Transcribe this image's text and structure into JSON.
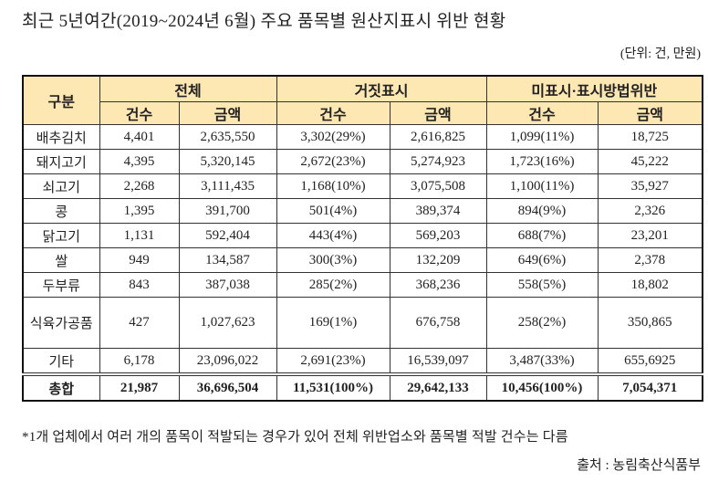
{
  "title": "최근 5년여간(2019~2024년 6월) 주요 품목별 원산지표시 위반 현황",
  "unit": "(단위: 건, 만원)",
  "header": {
    "category": "구분",
    "groups": [
      "전체",
      "거짓표시",
      "미표시·표시방법위반"
    ],
    "sub": [
      "건수",
      "금액",
      "건수",
      "금액",
      "건수",
      "금액"
    ]
  },
  "rows": [
    {
      "name": "배추김치",
      "cells": [
        "4,401",
        "2,635,550",
        "3,302(29%)",
        "2,616,825",
        "1,099(11%)",
        "18,725"
      ]
    },
    {
      "name": "돼지고기",
      "cells": [
        "4,395",
        "5,320,145",
        "2,672(23%)",
        "5,274,923",
        "1,723(16%)",
        "45,222"
      ]
    },
    {
      "name": "쇠고기",
      "cells": [
        "2,268",
        "3,111,435",
        "1,168(10%)",
        "3,075,508",
        "1,100(11%)",
        "35,927"
      ]
    },
    {
      "name": "콩",
      "cells": [
        "1,395",
        "391,700",
        "501(4%)",
        "389,374",
        "894(9%)",
        "2,326"
      ]
    },
    {
      "name": "닭고기",
      "cells": [
        "1,131",
        "592,404",
        "443(4%)",
        "569,203",
        "688(7%)",
        "23,201"
      ]
    },
    {
      "name": "쌀",
      "cells": [
        "949",
        "134,587",
        "300(3%)",
        "132,209",
        "649(6%)",
        "2,378"
      ]
    },
    {
      "name": "두부류",
      "cells": [
        "843",
        "387,038",
        "285(2%)",
        "368,236",
        "558(5%)",
        "18,802"
      ]
    },
    {
      "name": "식육가공품",
      "cells": [
        "427",
        "1,027,623",
        "169(1%)",
        "676,758",
        "258(2%)",
        "350,865"
      ]
    },
    {
      "name": "기타",
      "cells": [
        "6,178",
        "23,096,022",
        "2,691(23%)",
        "16,539,097",
        "3,487(33%)",
        "655,6925"
      ]
    }
  ],
  "total": {
    "name": "총합",
    "cells": [
      "21,987",
      "36,696,504",
      "11,531(100%)",
      "29,642,133",
      "10,456(100%)",
      "7,054,371"
    ]
  },
  "footnote": "*1개 업체에서 여러 개의 품목이 적발되는 경우가 있어 전체 위반업소와 품목별 적발 건수는 다름",
  "source": "출처 : 농림축산식품부"
}
